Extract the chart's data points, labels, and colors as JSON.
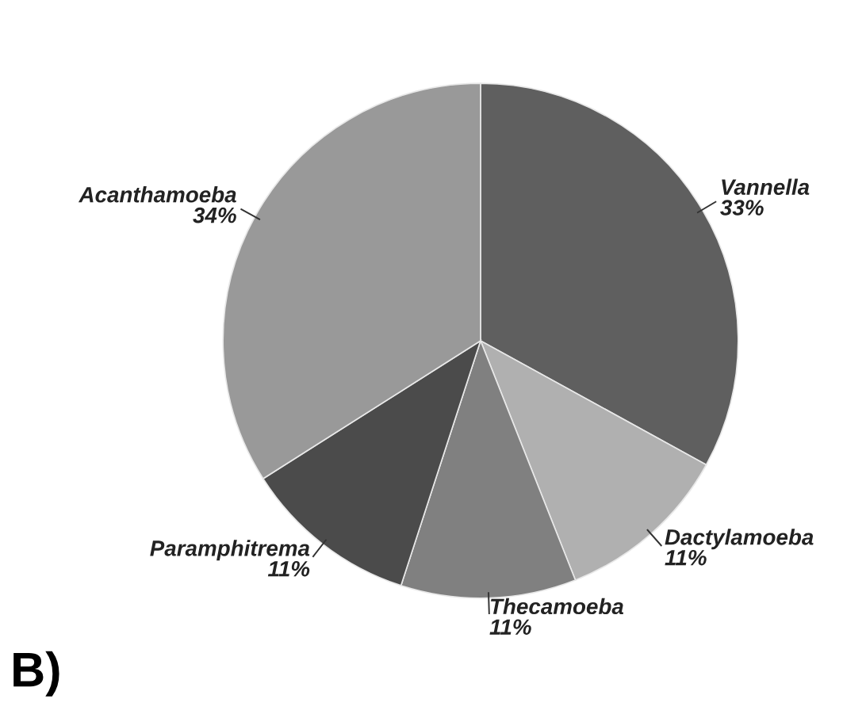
{
  "chart_data": {
    "type": "pie",
    "categories": [
      "Vannella",
      "Dactylamoeba",
      "Thecamoeba",
      "Paramphitrema",
      "Acanthamoeba"
    ],
    "values": [
      33,
      11,
      11,
      11,
      34
    ],
    "value_labels": [
      "33%",
      "11%",
      "11%",
      "11%",
      "34%"
    ],
    "colors": [
      "#5f5f5f",
      "#b0b0b0",
      "#808080",
      "#4b4b4b",
      "#999999"
    ],
    "annotations": [
      "B)"
    ],
    "legend": false
  }
}
